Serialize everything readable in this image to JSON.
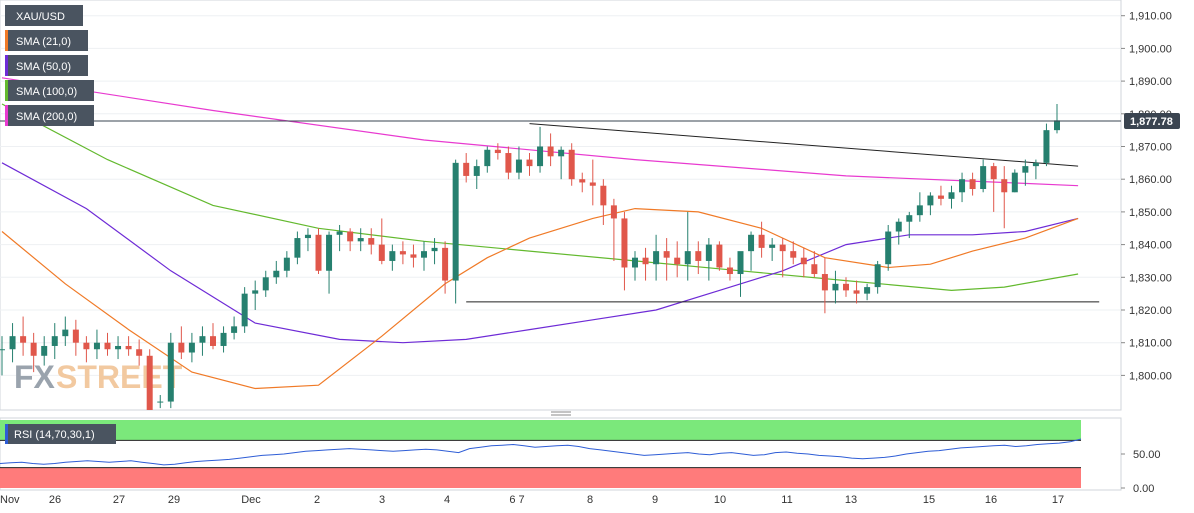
{
  "symbol": "XAU/USD",
  "current_price": "1,877.78",
  "watermark": {
    "fx": "FX",
    "street": "STREET"
  },
  "colors": {
    "candle_up": "#26806f",
    "candle_down": "#e0574b",
    "sma21": "#f07a27",
    "sma50": "#6e2bd6",
    "sma100": "#63b92e",
    "sma200": "#e83ad0",
    "rsi_line": "#2e5dd6",
    "trendline": "#222222",
    "overbought_zone": "#7be87b",
    "oversold_zone": "#ff7b7b",
    "price_tag": "#3a4450",
    "legend_bg": "#4a5460"
  },
  "legend": [
    {
      "label": "XAU/USD",
      "color_key": "none"
    },
    {
      "label": "SMA (21,0)",
      "color_key": "sma21"
    },
    {
      "label": "SMA (50,0)",
      "color_key": "sma50"
    },
    {
      "label": "SMA (100,0)",
      "color_key": "sma100"
    },
    {
      "label": "SMA (200,0)",
      "color_key": "sma200"
    }
  ],
  "rsi_legend": "RSI (14,70,30,1)",
  "chart_data": {
    "type": "candlestick",
    "title": "",
    "y_axis": {
      "ticks": [
        "1,910.00",
        "1,900.00",
        "1,890.00",
        "1,880.00",
        "1,870.00",
        "1,860.00",
        "1,850.00",
        "1,840.00",
        "1,830.00",
        "1,820.00",
        "1,810.00",
        "1,800.00"
      ],
      "range": [
        1792,
        1914
      ]
    },
    "x_axis": {
      "ticks": [
        "Nov",
        "26",
        "27",
        "29",
        "Dec",
        "2",
        "3",
        "4",
        "6 7",
        "8",
        "9",
        "10",
        "11",
        "13",
        "15",
        "16",
        "17"
      ]
    },
    "candles": [
      [
        1808,
        1812,
        1800,
        1808
      ],
      [
        1808,
        1816,
        1804,
        1812
      ],
      [
        1812,
        1818,
        1806,
        1810
      ],
      [
        1810,
        1813,
        1801,
        1806
      ],
      [
        1806,
        1812,
        1803,
        1809
      ],
      [
        1809,
        1816,
        1805,
        1812
      ],
      [
        1812,
        1818,
        1809,
        1814
      ],
      [
        1814,
        1817,
        1806,
        1810
      ],
      [
        1810,
        1812,
        1804,
        1808
      ],
      [
        1808,
        1814,
        1805,
        1810
      ],
      [
        1810,
        1813,
        1806,
        1808
      ],
      [
        1808,
        1812,
        1805,
        1809
      ],
      [
        1809,
        1812,
        1806,
        1808
      ],
      [
        1808,
        1811,
        1803,
        1806
      ],
      [
        1806,
        1808,
        1770,
        1770
      ],
      [
        1792,
        1794,
        1790,
        1792
      ],
      [
        1792,
        1813,
        1790,
        1810
      ],
      [
        1810,
        1815,
        1805,
        1807
      ],
      [
        1807,
        1813,
        1804,
        1810
      ],
      [
        1810,
        1815,
        1806,
        1812
      ],
      [
        1812,
        1816,
        1808,
        1809
      ],
      [
        1809,
        1815,
        1807,
        1813
      ],
      [
        1813,
        1818,
        1811,
        1815
      ],
      [
        1815,
        1827,
        1813,
        1825
      ],
      [
        1825,
        1829,
        1820,
        1826
      ],
      [
        1826,
        1832,
        1824,
        1830
      ],
      [
        1830,
        1835,
        1828,
        1832
      ],
      [
        1832,
        1838,
        1830,
        1836
      ],
      [
        1836,
        1844,
        1834,
        1842
      ],
      [
        1842,
        1845,
        1838,
        1843
      ],
      [
        1843,
        1845,
        1831,
        1832
      ],
      [
        1832,
        1844,
        1825,
        1843
      ],
      [
        1843,
        1846,
        1838,
        1844
      ],
      [
        1844,
        1845,
        1838,
        1841
      ],
      [
        1841,
        1845,
        1838,
        1842
      ],
      [
        1842,
        1845,
        1837,
        1840
      ],
      [
        1840,
        1848,
        1834,
        1835
      ],
      [
        1835,
        1840,
        1832,
        1838
      ],
      [
        1838,
        1841,
        1834,
        1837
      ],
      [
        1837,
        1840,
        1833,
        1836
      ],
      [
        1836,
        1841,
        1832,
        1838
      ],
      [
        1838,
        1842,
        1834,
        1839
      ],
      [
        1839,
        1841,
        1825,
        1829
      ],
      [
        1829,
        1866,
        1822,
        1865
      ],
      [
        1865,
        1868,
        1859,
        1861
      ],
      [
        1861,
        1866,
        1857,
        1864
      ],
      [
        1864,
        1870,
        1862,
        1869
      ],
      [
        1869,
        1871,
        1866,
        1868
      ],
      [
        1868,
        1870,
        1860,
        1862
      ],
      [
        1862,
        1870,
        1860,
        1866
      ],
      [
        1866,
        1868,
        1861,
        1864
      ],
      [
        1864,
        1876,
        1862,
        1870
      ],
      [
        1870,
        1874,
        1864,
        1867
      ],
      [
        1867,
        1870,
        1860,
        1869
      ],
      [
        1869,
        1871,
        1858,
        1860
      ],
      [
        1860,
        1862,
        1856,
        1859
      ],
      [
        1859,
        1866,
        1852,
        1858
      ],
      [
        1858,
        1860,
        1846,
        1852
      ],
      [
        1852,
        1854,
        1835,
        1848
      ],
      [
        1848,
        1850,
        1826,
        1833
      ],
      [
        1833,
        1838,
        1829,
        1836
      ],
      [
        1836,
        1839,
        1829,
        1834
      ],
      [
        1834,
        1843,
        1829,
        1838
      ],
      [
        1838,
        1842,
        1829,
        1836
      ],
      [
        1836,
        1841,
        1830,
        1834
      ],
      [
        1834,
        1850,
        1829,
        1838
      ],
      [
        1838,
        1841,
        1831,
        1835
      ],
      [
        1835,
        1842,
        1829,
        1840
      ],
      [
        1840,
        1841,
        1832,
        1833
      ],
      [
        1833,
        1836,
        1829,
        1831
      ],
      [
        1831,
        1837,
        1824,
        1838
      ],
      [
        1838,
        1844,
        1832,
        1843
      ],
      [
        1843,
        1847,
        1836,
        1839
      ],
      [
        1839,
        1842,
        1835,
        1840
      ],
      [
        1840,
        1842,
        1830,
        1838
      ],
      [
        1838,
        1841,
        1834,
        1836
      ],
      [
        1836,
        1839,
        1830,
        1834
      ],
      [
        1834,
        1838,
        1830,
        1831
      ],
      [
        1831,
        1836,
        1819,
        1826
      ],
      [
        1826,
        1832,
        1822,
        1828
      ],
      [
        1828,
        1830,
        1824,
        1826
      ],
      [
        1826,
        1829,
        1822,
        1825
      ],
      [
        1825,
        1828,
        1823,
        1827
      ],
      [
        1827,
        1835,
        1825,
        1834
      ],
      [
        1834,
        1846,
        1832,
        1844
      ],
      [
        1844,
        1848,
        1840,
        1847
      ],
      [
        1847,
        1850,
        1842,
        1849
      ],
      [
        1849,
        1856,
        1847,
        1852
      ],
      [
        1852,
        1856,
        1849,
        1855
      ],
      [
        1855,
        1858,
        1852,
        1854
      ],
      [
        1854,
        1858,
        1851,
        1856
      ],
      [
        1856,
        1862,
        1853,
        1860
      ],
      [
        1860,
        1862,
        1855,
        1857
      ],
      [
        1857,
        1866,
        1856,
        1864
      ],
      [
        1864,
        1865,
        1850,
        1860
      ],
      [
        1860,
        1864,
        1845,
        1856
      ],
      [
        1856,
        1863,
        1856,
        1862
      ],
      [
        1862,
        1866,
        1858,
        1864
      ],
      [
        1864,
        1866,
        1860,
        1865
      ],
      [
        1865,
        1877,
        1864,
        1875
      ],
      [
        1875,
        1883,
        1874,
        1878
      ]
    ],
    "trendlines": [
      {
        "name": "resistance",
        "from": {
          "x_index": 50,
          "y": 1877
        },
        "to": {
          "x_index": 102,
          "y": 1864
        }
      },
      {
        "name": "support",
        "from": {
          "x_index": 44,
          "y": 1822.5
        },
        "to": {
          "x_index": 104,
          "y": 1822.5
        }
      }
    ],
    "sma": {
      "sma200": {
        "x": [
          0,
          20,
          40,
          60,
          80,
          95,
          102
        ],
        "y": [
          1891,
          1881,
          1872,
          1866,
          1861,
          1859,
          1858
        ]
      },
      "sma100": {
        "x": [
          0,
          10,
          20,
          30,
          40,
          50,
          60,
          70,
          80,
          90,
          95,
          102
        ],
        "y": [
          1883,
          1866,
          1852,
          1845,
          1841,
          1838,
          1835,
          1832,
          1829,
          1826,
          1827,
          1831
        ]
      },
      "sma50": {
        "x": [
          0,
          8,
          16,
          24,
          32,
          38,
          44,
          50,
          56,
          62,
          68,
          74,
          80,
          86,
          92,
          97,
          102
        ],
        "y": [
          1865,
          1851,
          1832,
          1816,
          1811,
          1810,
          1811,
          1814,
          1817,
          1820,
          1826,
          1832,
          1840,
          1843,
          1843,
          1844,
          1848
        ]
      },
      "sma21": {
        "x": [
          0,
          6,
          12,
          18,
          24,
          30,
          36,
          42,
          46,
          50,
          56,
          60,
          66,
          72,
          78,
          84,
          88,
          92,
          97,
          102
        ],
        "y": [
          1844,
          1828,
          1814,
          1801,
          1796,
          1797,
          1812,
          1828,
          1836,
          1842,
          1848,
          1851,
          1850,
          1845,
          1836,
          1833,
          1834,
          1838,
          1842,
          1848
        ]
      }
    },
    "rsi": {
      "range": [
        0,
        100
      ],
      "ticks": [
        "50.00",
        "0.00"
      ],
      "levels": {
        "overbought": 70,
        "oversold": 30
      },
      "values": [
        36,
        37,
        38,
        36,
        35,
        36,
        38,
        39,
        40,
        39,
        38,
        39,
        40,
        38,
        36,
        34,
        35,
        37,
        39,
        40,
        41,
        42,
        44,
        46,
        48,
        49,
        50,
        52,
        54,
        55,
        56,
        57,
        58,
        57,
        56,
        55,
        54,
        55,
        56,
        57,
        56,
        54,
        52,
        58,
        60,
        62,
        63,
        64,
        62,
        60,
        61,
        62,
        63,
        61,
        58,
        56,
        54,
        52,
        50,
        48,
        49,
        50,
        51,
        52,
        50,
        49,
        51,
        52,
        50,
        48,
        49,
        52,
        53,
        51,
        50,
        48,
        47,
        46,
        44,
        43,
        44,
        45,
        47,
        50,
        52,
        54,
        55,
        57,
        59,
        60,
        61,
        62,
        63,
        61,
        62,
        64,
        65,
        66,
        68,
        72
      ]
    }
  }
}
